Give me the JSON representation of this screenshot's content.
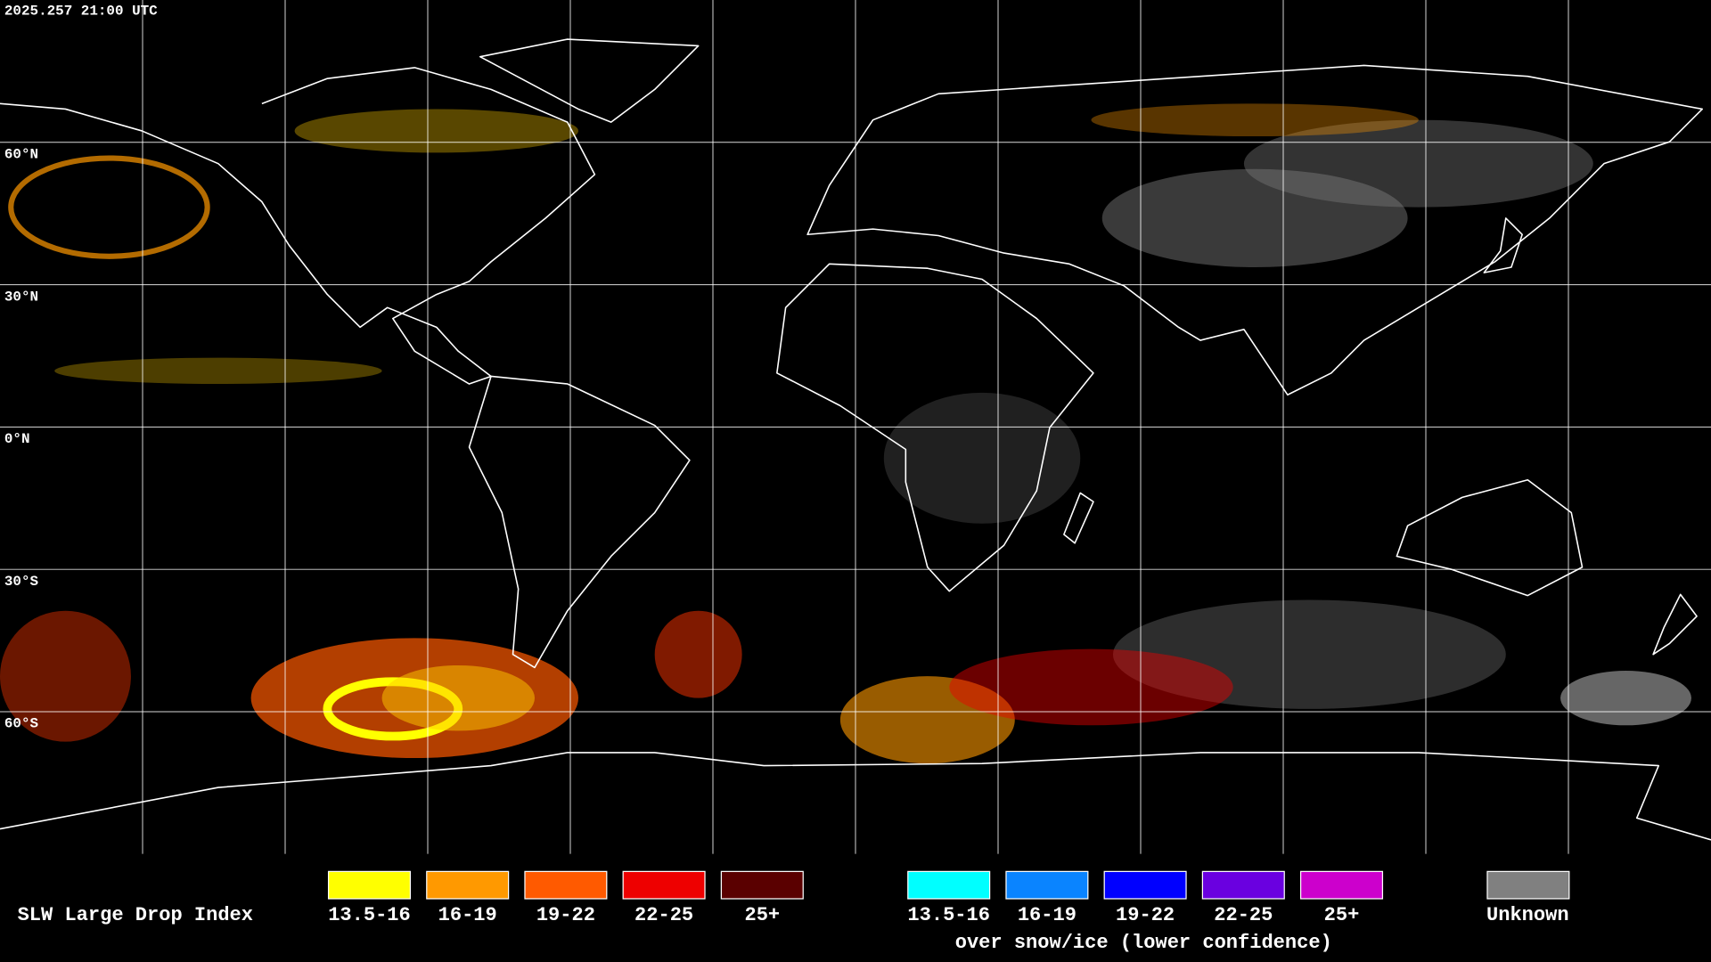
{
  "header": {
    "timestamp": "2025.257 21:00 UTC"
  },
  "map": {
    "latitude_labels": [
      "60°N",
      "30°N",
      "0°N",
      "30°S",
      "60°S"
    ]
  },
  "legend": {
    "title": "SLW Large Drop Index",
    "items": [
      {
        "label": "13.5-16",
        "color": "#ffff00"
      },
      {
        "label": "16-19",
        "color": "#ff9900"
      },
      {
        "label": "19-22",
        "color": "#ff5a00"
      },
      {
        "label": "22-25",
        "color": "#ee0000"
      },
      {
        "label": "25+",
        "color": "#5a0000"
      }
    ],
    "snow_items": [
      {
        "label": "13.5-16",
        "color": "#00ffff"
      },
      {
        "label": "16-19",
        "color": "#0a84ff"
      },
      {
        "label": "19-22",
        "color": "#0000ff"
      },
      {
        "label": "22-25",
        "color": "#6a00e0"
      },
      {
        "label": "25+",
        "color": "#cc00cc"
      }
    ],
    "snow_caption": "over snow/ice (lower confidence)",
    "unknown": {
      "label": "Unknown",
      "color": "#808080"
    }
  }
}
